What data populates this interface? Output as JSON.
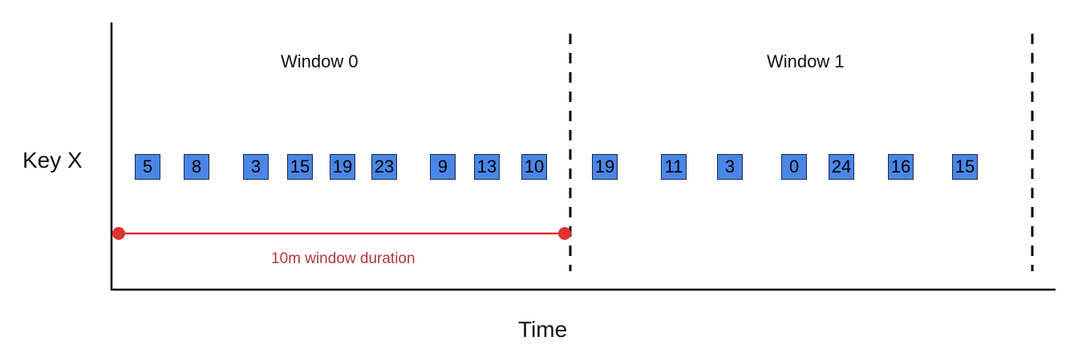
{
  "diagram": {
    "y_axis_label": "Key X",
    "x_axis_label": "Time",
    "windows": [
      {
        "label": "Window 0",
        "values": [
          "5",
          "8",
          "3",
          "15",
          "19",
          "23",
          "9",
          "13",
          "10"
        ]
      },
      {
        "label": "Window 1",
        "values": [
          "19",
          "11",
          "3",
          "0",
          "24",
          "16",
          "15"
        ]
      }
    ],
    "duration_label": "10m window duration",
    "colors": {
      "box_fill": "#4a86e8",
      "box_border": "#1b2a44",
      "duration_line": "#e0322e",
      "duration_text": "#b0393b"
    }
  }
}
